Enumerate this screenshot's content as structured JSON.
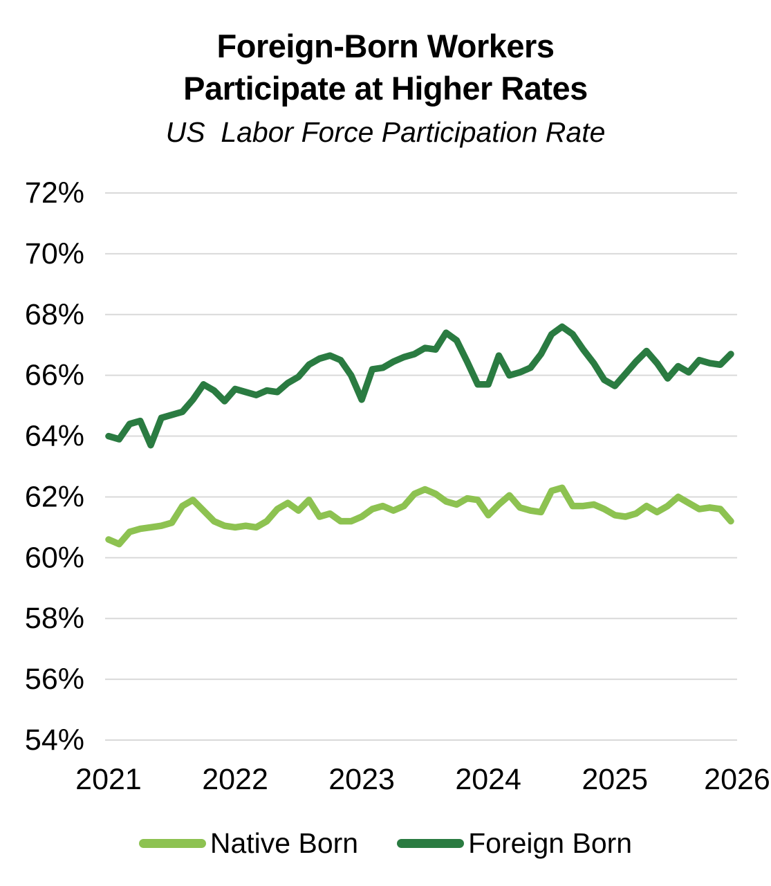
{
  "title": {
    "line1": "Foreign-Born Workers",
    "line2": "Participate at Higher Rates"
  },
  "subtitle": "US  Labor Force Participation Rate",
  "legend": [
    {
      "label": "Native Born",
      "color": "#8DC251"
    },
    {
      "label": "Foreign Born",
      "color": "#2A7B41"
    }
  ],
  "chart_data": {
    "type": "line",
    "title": "Foreign-Born Workers Participate at Higher Rates",
    "subtitle": "US  Labor Force Participation Rate",
    "unit": "%",
    "frequency": "monthly",
    "x_start": "2021-01",
    "x_end": "2025-12",
    "x_tick_labels": [
      "2021",
      "2022",
      "2023",
      "2024",
      "2025",
      "2026"
    ],
    "y_tick_labels": [
      "54%",
      "56%",
      "58%",
      "60%",
      "62%",
      "64%",
      "66%",
      "68%",
      "70%",
      "72%"
    ],
    "ylim": [
      54,
      72
    ],
    "y_step": 2,
    "grid": "horizontal",
    "legend_position": "bottom",
    "series": [
      {
        "name": "Native Born",
        "color": "#8DC251",
        "values": [
          60.6,
          60.45,
          60.85,
          60.95,
          61.0,
          61.05,
          61.15,
          61.7,
          61.9,
          61.55,
          61.2,
          61.05,
          61.0,
          61.05,
          61.0,
          61.2,
          61.6,
          61.8,
          61.55,
          61.9,
          61.35,
          61.45,
          61.2,
          61.2,
          61.35,
          61.6,
          61.7,
          61.55,
          61.7,
          62.1,
          62.25,
          62.1,
          61.85,
          61.75,
          61.95,
          61.9,
          61.4,
          61.75,
          62.05,
          61.65,
          61.55,
          61.5,
          62.2,
          62.3,
          61.7,
          61.7,
          61.75,
          61.6,
          61.4,
          61.35,
          61.45,
          61.7,
          61.5,
          61.7,
          62.0,
          61.8,
          61.6,
          61.65,
          61.6,
          61.2
        ]
      },
      {
        "name": "Foreign Born",
        "color": "#2A7B41",
        "values": [
          64.0,
          63.9,
          64.4,
          64.5,
          63.7,
          64.6,
          64.7,
          64.8,
          65.2,
          65.7,
          65.5,
          65.15,
          65.55,
          65.45,
          65.35,
          65.5,
          65.45,
          65.75,
          65.95,
          66.35,
          66.55,
          66.65,
          66.5,
          66.0,
          65.2,
          66.2,
          66.25,
          66.45,
          66.6,
          66.7,
          66.9,
          66.85,
          67.4,
          67.15,
          66.45,
          65.7,
          65.7,
          66.65,
          66.0,
          66.1,
          66.25,
          66.7,
          67.35,
          67.6,
          67.35,
          66.85,
          66.4,
          65.85,
          65.65,
          66.05,
          66.45,
          66.8,
          66.4,
          65.9,
          66.3,
          66.1,
          66.5,
          66.4,
          66.35,
          66.7
        ]
      }
    ]
  }
}
